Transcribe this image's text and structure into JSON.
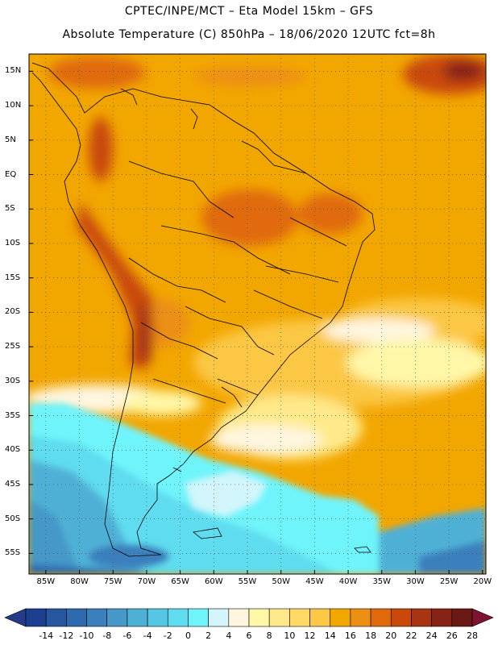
{
  "header": {
    "line1": "CPTEC/INPE/MCT –  Eta Model 15km – GFS",
    "line2": "Absolute Temperature (C) 850hPa – 18/06/2020 12UTC fct=8h"
  },
  "map": {
    "lat_labels": [
      "15N",
      "10N",
      "5N",
      "EQ",
      "5S",
      "10S",
      "15S",
      "20S",
      "25S",
      "30S",
      "35S",
      "40S",
      "45S",
      "50S",
      "55S"
    ],
    "lon_labels": [
      "85W",
      "80W",
      "75W",
      "70W",
      "65W",
      "60W",
      "55W",
      "50W",
      "45W",
      "40W",
      "35W",
      "30W",
      "25W",
      "20W"
    ],
    "lat_values": [
      15,
      10,
      5,
      0,
      -5,
      -10,
      -15,
      -20,
      -25,
      -30,
      -35,
      -40,
      -45,
      -50,
      -55
    ],
    "lon_values": [
      -85,
      -80,
      -75,
      -70,
      -65,
      -60,
      -55,
      -50,
      -45,
      -40,
      -35,
      -30,
      -25,
      -20
    ]
  },
  "colorbar": {
    "labels": [
      "-14",
      "-12",
      "-10",
      "-8",
      "-6",
      "-4",
      "-2",
      "0",
      "2",
      "4",
      "6",
      "8",
      "10",
      "12",
      "14",
      "16",
      "18",
      "20",
      "22",
      "24",
      "26",
      "28"
    ],
    "colors": [
      "#1c3f8f",
      "#25569e",
      "#2e6aae",
      "#3b80bd",
      "#4598c8",
      "#4fb0d6",
      "#55c7e3",
      "#5fdcef",
      "#6ff4fb",
      "#d2f6fb",
      "#fff6e0",
      "#fff7a8",
      "#ffe98a",
      "#ffd966",
      "#fbc744",
      "#f2a600",
      "#ec8f12",
      "#e06a0a",
      "#c9480b",
      "#a83412",
      "#862316",
      "#6a1a14"
    ],
    "under_color": "#263a8a",
    "over_color": "#7d1530"
  }
}
